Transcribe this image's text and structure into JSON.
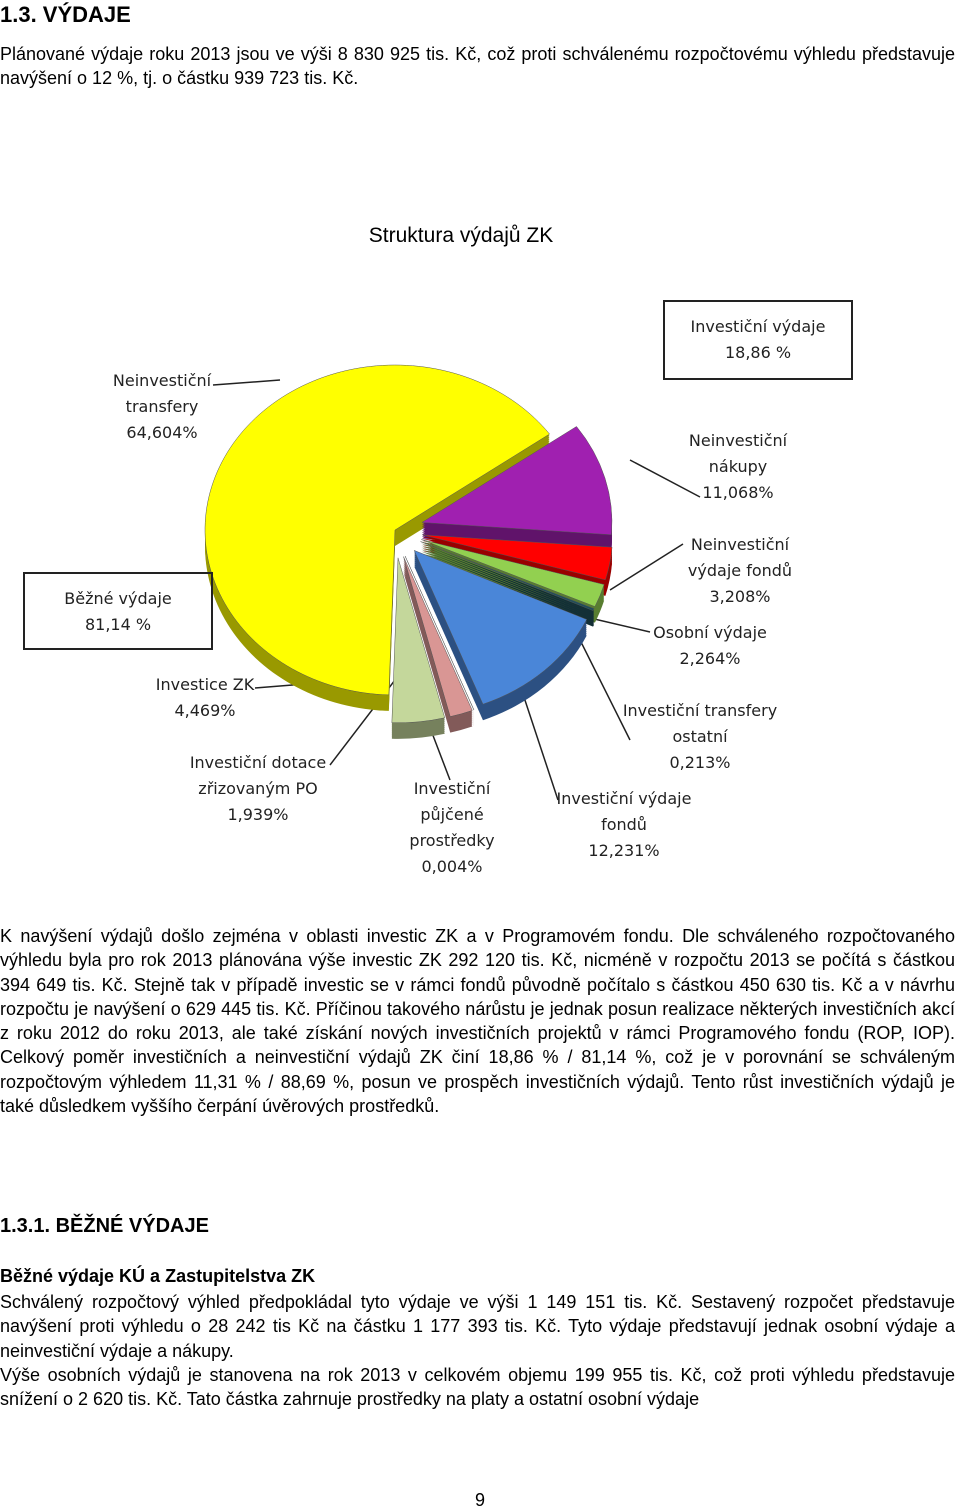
{
  "heading": "1.3. VÝDAJE",
  "intro": "Plánované výdaje roku 2013 jsou ve výši 8 830 925 tis. Kč, což proti schválenému rozpočtovému výhledu představuje navýšení o 12 %, tj. o částku 939 723 tis. Kč.",
  "chart_data": {
    "type": "pie",
    "title": "Struktura výdajů ZK",
    "categories": [
      "Neinvestiční transfery",
      "Neinvestiční nákupy",
      "Neinvestiční výdaje fondů",
      "Osobní výdaje",
      "Investiční transfery ostatní",
      "Investiční výdaje fondů",
      "Investiční půjčené prostředky",
      "Investiční dotace zřizovaným PO",
      "Investice ZK"
    ],
    "values": [
      64.604,
      11.068,
      3.208,
      2.264,
      0.213,
      12.231,
      0.004,
      1.939,
      4.469
    ],
    "value_labels": [
      "64,604%",
      "11,068%",
      "3,208%",
      "2,264%",
      "0,213%",
      "12,231%",
      "0,004%",
      "1,939%",
      "4,469%"
    ],
    "colors": [
      "#ffff00",
      "#a020b0",
      "#ff0000",
      "#92d050",
      "#1f4e5a",
      "#4a86d8",
      "#7b1b1b",
      "#d99694",
      "#c4d79b"
    ],
    "annotations": [
      {
        "label": "Investiční výdaje",
        "value_label": "18,86 %"
      },
      {
        "label": "Běžné výdaje",
        "value_label": "81,14 %"
      }
    ]
  },
  "paragraph": "K navýšení výdajů došlo zejména v oblasti investic ZK a v Programovém fondu. Dle schváleného rozpočtovaného výhledu byla pro rok 2013 plánována výše investic ZK 292 120 tis. Kč, nicméně v rozpočtu 2013 se počítá s částkou 394 649 tis. Kč. Stejně tak v případě investic se v rámci fondů původně počítalo s částkou 450 630 tis. Kč a v návrhu rozpočtu je navýšení o 629 445 tis. Kč. Příčinou takového nárůstu je jednak posun realizace některých investičních akcí z roku 2012 do roku 2013, ale také získání nových investičních projektů v rámci Programového fondu (ROP, IOP). Celkový poměr investičních a neinvestiční výdajů ZK činí 18,86 % / 81,14 %, což je v porovnání se schváleným rozpočtovým výhledem 11,31 % / 88,69 %, posun ve prospěch investičních výdajů. Tento růst investičních výdajů je také důsledkem vyššího čerpání úvěrových prostředků.",
  "section_heading": "1.3.1. BĚŽNÉ VÝDAJE",
  "subheading": "Běžné výdaje KÚ a Zastupitelstva ZK",
  "paragraphs": [
    "Schválený rozpočtový výhled předpokládal tyto výdaje ve výši 1 149 151 tis. Kč. Sestavený rozpočet představuje navýšení proti výhledu o 28 242 tis Kč na částku 1 177 393 tis. Kč. Tyto výdaje představují jednak osobní výdaje a neinvestiční výdaje a nákupy.",
    "Výše osobních výdajů je stanovena na rok 2013 v celkovém objemu 199 955 tis. Kč, což proti výhledu představuje snížení o 2 620 tis. Kč. Tato částka zahrnuje prostředky na platy a ostatní osobní výdaje"
  ],
  "page_number": "9"
}
